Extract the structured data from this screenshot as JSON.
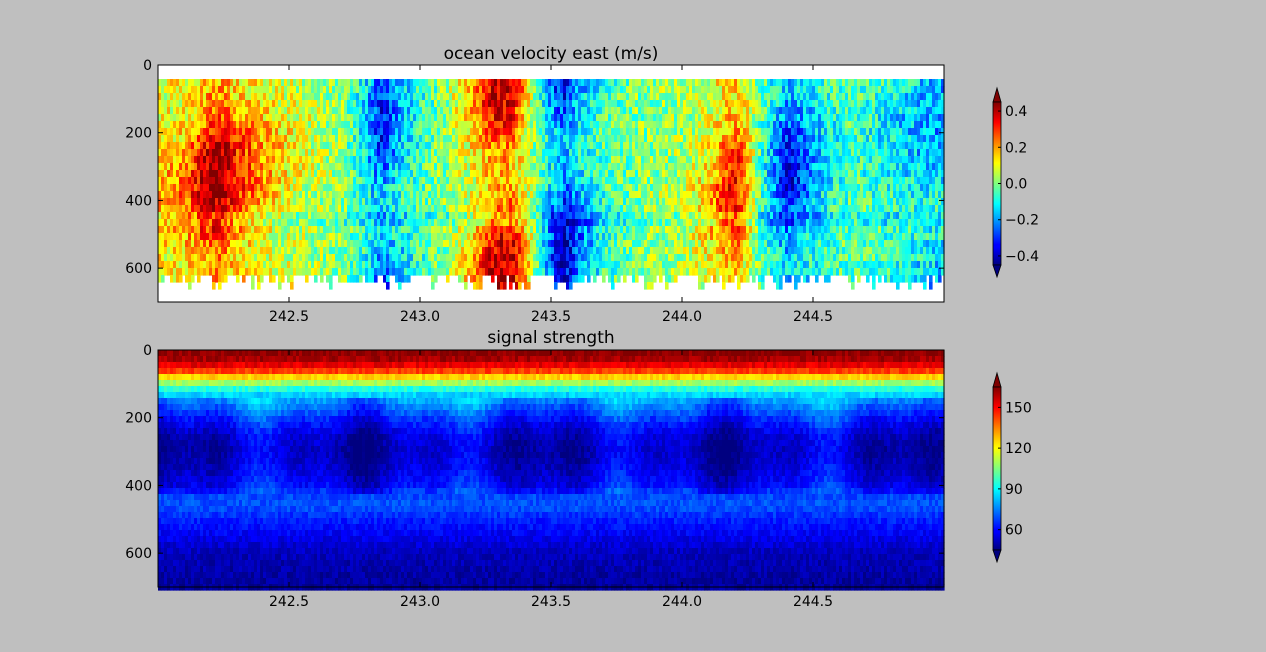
{
  "figure": {
    "background": "#bfbfbf"
  },
  "chart_data": [
    {
      "type": "heatmap",
      "title": "ocean velocity east (m/s)",
      "xlabel": "",
      "ylabel": "",
      "x_ticks": [
        "242.5",
        "243.0",
        "243.5",
        "244.0",
        "244.5"
      ],
      "y_ticks": [
        "0",
        "200",
        "400",
        "600"
      ],
      "xlim": [
        242.0,
        245.0
      ],
      "ylim": [
        700,
        0
      ],
      "y_inverted": true,
      "colormap": "jet",
      "color_range": [
        -0.45,
        0.45
      ],
      "colorbar_ticks": [
        "0.4",
        "0.2",
        "0.0",
        "−0.2",
        "−0.4"
      ],
      "colorbar_tick_values": [
        0.4,
        0.2,
        0.0,
        -0.2,
        -0.4
      ],
      "colorbar_extend": "both",
      "grid": false,
      "data_depth_range": [
        40,
        620
      ],
      "profile": {
        "x": [
          242.0,
          242.1,
          242.15,
          242.2,
          242.25,
          242.3,
          242.4,
          242.5,
          242.6,
          242.7,
          242.78,
          242.85,
          242.92,
          243.0,
          243.1,
          243.2,
          243.28,
          243.35,
          243.42,
          243.5,
          243.55,
          243.6,
          243.7,
          243.8,
          243.9,
          244.0,
          244.1,
          244.18,
          244.22,
          244.3,
          244.4,
          244.45,
          244.55,
          244.65,
          244.75,
          244.85,
          244.95,
          245.0
        ],
        "velocity": [
          0.18,
          0.22,
          0.32,
          0.42,
          0.42,
          0.32,
          0.2,
          0.12,
          0.06,
          0.02,
          -0.12,
          -0.32,
          -0.2,
          -0.08,
          0.02,
          0.18,
          0.38,
          0.38,
          0.1,
          -0.25,
          -0.38,
          -0.25,
          -0.08,
          -0.02,
          0.02,
          0.05,
          0.15,
          0.32,
          0.3,
          -0.05,
          -0.35,
          -0.28,
          -0.12,
          -0.05,
          -0.1,
          -0.15,
          -0.2,
          -0.2
        ]
      }
    },
    {
      "type": "heatmap",
      "title": "signal strength",
      "xlabel": "",
      "ylabel": "",
      "x_ticks": [
        "242.5",
        "243.0",
        "243.5",
        "244.0",
        "244.5"
      ],
      "y_ticks": [
        "0",
        "200",
        "400",
        "600"
      ],
      "xlim": [
        242.0,
        245.0
      ],
      "ylim": [
        700,
        0
      ],
      "y_inverted": true,
      "colormap": "jet",
      "color_range": [
        45,
        165
      ],
      "colorbar_ticks": [
        "150",
        "120",
        "90",
        "60"
      ],
      "colorbar_tick_values": [
        150,
        120,
        90,
        60
      ],
      "colorbar_extend": "both",
      "grid": false,
      "depth_profile": {
        "depth": [
          0,
          30,
          60,
          90,
          120,
          150,
          200,
          250,
          300,
          350,
          400,
          430,
          460,
          500,
          550,
          600,
          650,
          700
        ],
        "signal": [
          165,
          160,
          145,
          115,
          90,
          78,
          65,
          55,
          52,
          55,
          60,
          68,
          70,
          64,
          58,
          52,
          50,
          48
        ]
      }
    }
  ]
}
